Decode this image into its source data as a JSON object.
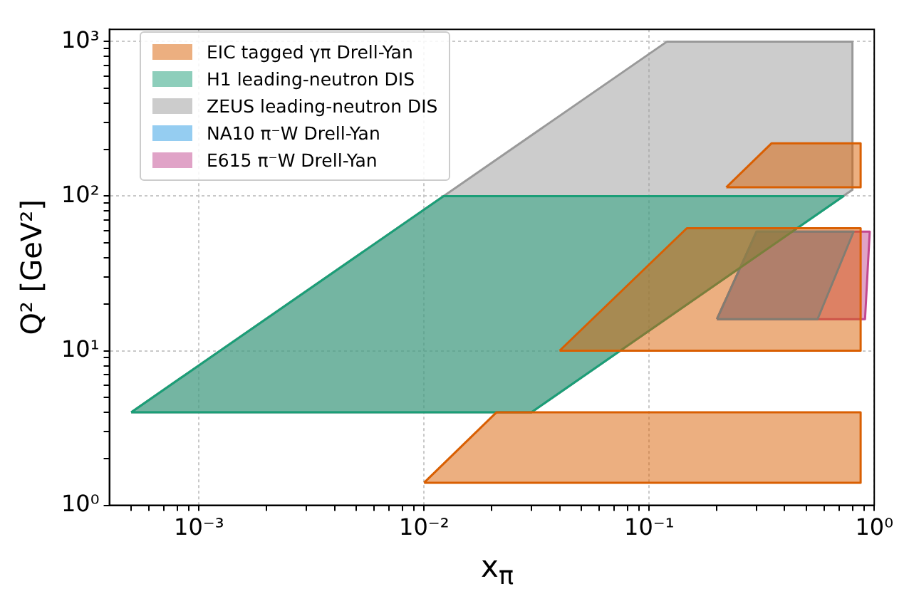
{
  "chart_data": {
    "type": "area",
    "xlabel": "x$_{π}$",
    "ylabel": "Q² [GeV²]",
    "log": "xy",
    "grid": true,
    "legend": "top left",
    "line_style": "solid",
    "xlim": [
      0.0004,
      1
    ],
    "xticks": [
      {
        "value": 0.0005,
        "label": null
      },
      {
        "value": 0.0006,
        "label": null
      },
      {
        "value": 0.0007,
        "label": null
      },
      {
        "value": 0.0008,
        "label": null
      },
      {
        "value": 0.0009,
        "label": null
      },
      {
        "value": 0.001,
        "label": "10⁻³"
      },
      {
        "value": 0.002,
        "label": null
      },
      {
        "value": 0.003,
        "label": null
      },
      {
        "value": 0.004,
        "label": null
      },
      {
        "value": 0.005,
        "label": null
      },
      {
        "value": 0.006,
        "label": null
      },
      {
        "value": 0.007,
        "label": null
      },
      {
        "value": 0.008,
        "label": null
      },
      {
        "value": 0.009,
        "label": null
      },
      {
        "value": 0.01,
        "label": "10⁻²"
      },
      {
        "value": 0.02,
        "label": null
      },
      {
        "value": 0.03,
        "label": null
      },
      {
        "value": 0.04,
        "label": null
      },
      {
        "value": 0.05,
        "label": null
      },
      {
        "value": 0.06,
        "label": null
      },
      {
        "value": 0.07,
        "label": null
      },
      {
        "value": 0.08,
        "label": null
      },
      {
        "value": 0.09,
        "label": null
      },
      {
        "value": 0.1,
        "label": "10⁻¹"
      },
      {
        "value": 0.2,
        "label": null
      },
      {
        "value": 0.3,
        "label": null
      },
      {
        "value": 0.4,
        "label": null
      },
      {
        "value": 0.5,
        "label": null
      },
      {
        "value": 0.6,
        "label": null
      },
      {
        "value": 0.7,
        "label": null
      },
      {
        "value": 0.8,
        "label": null
      },
      {
        "value": 0.9,
        "label": null
      },
      {
        "value": 1,
        "label": "10⁰"
      }
    ],
    "ylim": [
      1,
      1200
    ],
    "yticks": [
      {
        "value": 1,
        "label": "10⁰"
      },
      {
        "value": 2,
        "label": null
      },
      {
        "value": 3,
        "label": null
      },
      {
        "value": 4,
        "label": null
      },
      {
        "value": 5,
        "label": null
      },
      {
        "value": 6,
        "label": null
      },
      {
        "value": 7,
        "label": null
      },
      {
        "value": 8,
        "label": null
      },
      {
        "value": 9,
        "label": null
      },
      {
        "value": 10,
        "label": "10¹"
      },
      {
        "value": 20,
        "label": null
      },
      {
        "value": 30,
        "label": null
      },
      {
        "value": 40,
        "label": null
      },
      {
        "value": 50,
        "label": null
      },
      {
        "value": 60,
        "label": null
      },
      {
        "value": 70,
        "label": null
      },
      {
        "value": 80,
        "label": null
      },
      {
        "value": 90,
        "label": null
      },
      {
        "value": 100,
        "label": "10²"
      },
      {
        "value": 200,
        "label": null
      },
      {
        "value": 300,
        "label": null
      },
      {
        "value": 400,
        "label": null
      },
      {
        "value": 500,
        "label": null
      },
      {
        "value": 600,
        "label": null
      },
      {
        "value": 700,
        "label": null
      },
      {
        "value": 800,
        "label": null
      },
      {
        "value": 900,
        "label": null
      },
      {
        "value": 1000,
        "label": "10³"
      }
    ],
    "series": [
      {
        "name": "EIC tagged γπ Drell-Yan",
        "color": "#d95f02",
        "x": [
          0.01,
          0.021,
          0.87,
          0.87,
          null,
          0.04,
          0.147,
          0.87,
          0.87,
          null,
          0.22,
          0.35,
          0.87,
          0.87
        ],
        "values": [
          1.4,
          4,
          4,
          1.4,
          null,
          10,
          62,
          62,
          10,
          null,
          114,
          220,
          220,
          114
        ]
      },
      {
        "name": "H1 leading-neutron DIS",
        "color": "#1b9e77",
        "x": [
          0.0005,
          0.0122,
          0.73,
          0.03
        ],
        "values": [
          4,
          100,
          100,
          4
        ]
      },
      {
        "name": "ZEUS leading-neutron DIS",
        "color": "#999999",
        "x": [
          0.0005,
          0.12,
          0.8,
          0.8,
          0.03
        ],
        "values": [
          4,
          1000,
          1000,
          110,
          4
        ]
      },
      {
        "name": "NA10 π⁻W Drell-Yan",
        "color": "#2b9be3",
        "x": [
          0.2,
          0.3,
          0.81,
          0.56
        ],
        "values": [
          16,
          59,
          59,
          16
        ]
      },
      {
        "name": "E615 π⁻W Drell-Yan",
        "color": "#c2488f",
        "x": [
          0.2,
          0.3,
          0.955,
          0.91
        ],
        "values": [
          16,
          59,
          59,
          16
        ]
      }
    ]
  }
}
